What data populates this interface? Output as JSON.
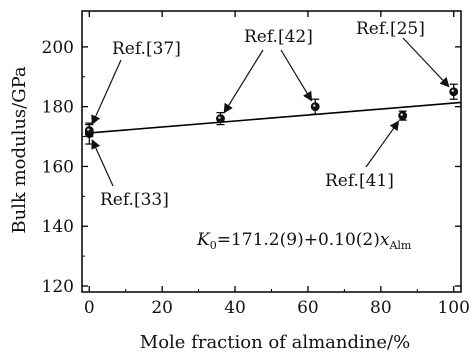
{
  "chart_data": {
    "type": "scatter",
    "title": "",
    "xlabel": "Mole fraction of almandine/%",
    "ylabel": "Bulk modulus/GPa",
    "xlim": [
      -2,
      102
    ],
    "ylim": [
      118,
      212
    ],
    "xticks": [
      0,
      20,
      40,
      60,
      80,
      100
    ],
    "yticks": [
      120,
      140,
      160,
      180,
      200
    ],
    "grid": false,
    "colors": {
      "axis": "#000000",
      "points": "#111111"
    },
    "series": [
      {
        "points": [
          {
            "x": 0,
            "y": 171,
            "err": 3.5
          },
          {
            "x": 0,
            "y": 172,
            "err": 2
          },
          {
            "x": 36,
            "y": 176,
            "err": 2
          },
          {
            "x": 62,
            "y": 180,
            "err": 2.5
          },
          {
            "x": 86,
            "y": 177,
            "err": 1.5
          },
          {
            "x": 100,
            "y": 185,
            "err": 2.5
          }
        ]
      }
    ],
    "fit": {
      "type": "line",
      "intercept": 171.2,
      "slope": 0.1
    },
    "annotations": [
      {
        "text": "Ref.[37]",
        "pointer_to": {
          "x": 0,
          "y": 172
        }
      },
      {
        "text": "Ref.[33]",
        "pointer_to": {
          "x": 0,
          "y": 171
        }
      },
      {
        "text": "Ref.[42]",
        "pointer_to": [
          {
            "x": 36,
            "y": 176
          },
          {
            "x": 62,
            "y": 180
          }
        ]
      },
      {
        "text": "Ref.[25]",
        "pointer_to": {
          "x": 100,
          "y": 185
        }
      },
      {
        "text": "Ref.[41]",
        "pointer_to": {
          "x": 86,
          "y": 177
        }
      }
    ],
    "equation": {
      "K": "K",
      "sub0": "0",
      "rest": "=171.2(9)+0.10(2)",
      "x": "x",
      "subAlm": "Alm"
    }
  }
}
